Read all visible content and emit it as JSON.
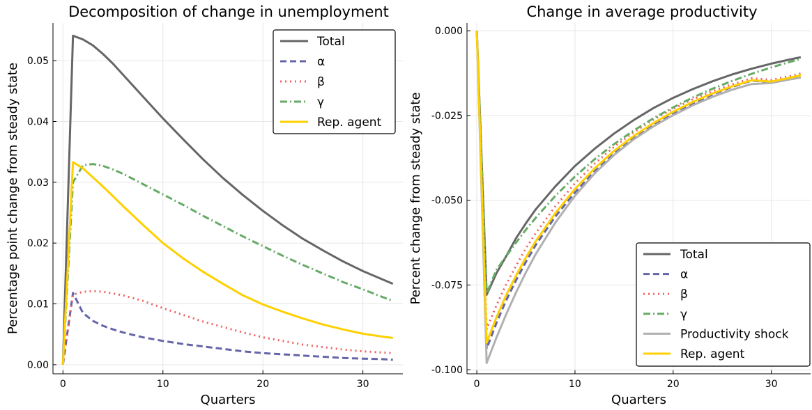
{
  "chart_data": [
    {
      "type": "line",
      "title": "Decomposition of change in unemployment",
      "xlabel": "Quarters",
      "ylabel": "Percentage point change from steady state",
      "xlim": [
        -1,
        34
      ],
      "ylim": [
        -0.0015,
        0.0562
      ],
      "xticks": [
        0,
        10,
        20,
        30
      ],
      "xtick_labels": [
        "0",
        "10",
        "20",
        "30"
      ],
      "yticks": [
        0,
        0.01,
        0.02,
        0.03,
        0.04,
        0.05
      ],
      "ytick_labels": [
        "0.00",
        "0.01",
        "0.02",
        "0.03",
        "0.04",
        "0.05"
      ],
      "grid": true,
      "legend_position": "top-right",
      "series": [
        {
          "name": "Total",
          "color": "#666666",
          "dash": "solid",
          "x": [
            0,
            1,
            2,
            3,
            4,
            5,
            6,
            8,
            10,
            12,
            14,
            16,
            18,
            20,
            22,
            24,
            26,
            28,
            30,
            32,
            33
          ],
          "y": [
            0,
            0.0541,
            0.0535,
            0.0525,
            0.0511,
            0.0495,
            0.0477,
            0.0441,
            0.0405,
            0.0371,
            0.0338,
            0.0307,
            0.0279,
            0.0253,
            0.0229,
            0.0207,
            0.0188,
            0.017,
            0.0154,
            0.014,
            0.0133
          ]
        },
        {
          "name": "α",
          "color": "#6464aa",
          "dash": "dash",
          "x": [
            0,
            1,
            2,
            3,
            4,
            5,
            6,
            8,
            10,
            12,
            14,
            16,
            18,
            20,
            22,
            24,
            26,
            28,
            30,
            32,
            33
          ],
          "y": [
            0,
            0.0118,
            0.0085,
            0.0072,
            0.0064,
            0.0058,
            0.0053,
            0.0045,
            0.0039,
            0.0034,
            0.003,
            0.0026,
            0.0022,
            0.0019,
            0.0017,
            0.0015,
            0.0013,
            0.0011,
            0.001,
            0.0009,
            0.0008
          ]
        },
        {
          "name": "β",
          "color": "#f06060",
          "dash": "dot",
          "x": [
            0,
            1,
            2,
            3,
            4,
            5,
            6,
            8,
            10,
            12,
            14,
            16,
            18,
            20,
            22,
            24,
            26,
            28,
            30,
            32,
            33
          ],
          "y": [
            0,
            0.0115,
            0.012,
            0.0121,
            0.012,
            0.0117,
            0.0114,
            0.0105,
            0.0093,
            0.0082,
            0.0071,
            0.0062,
            0.0053,
            0.0045,
            0.0039,
            0.0033,
            0.0029,
            0.0025,
            0.0022,
            0.002,
            0.0019
          ]
        },
        {
          "name": "γ",
          "color": "#66aa66",
          "dash": "dashdot",
          "x": [
            0,
            1,
            2,
            3,
            4,
            5,
            6,
            8,
            10,
            12,
            14,
            16,
            18,
            20,
            22,
            24,
            26,
            28,
            30,
            32,
            33
          ],
          "y": [
            0,
            0.03,
            0.0328,
            0.033,
            0.0327,
            0.0321,
            0.0314,
            0.0297,
            0.028,
            0.0263,
            0.0245,
            0.0228,
            0.0211,
            0.0195,
            0.0179,
            0.0164,
            0.015,
            0.0136,
            0.0124,
            0.0111,
            0.0105
          ]
        },
        {
          "name": "Rep. agent",
          "color": "#ffd000",
          "dash": "solid",
          "x": [
            0,
            1,
            2,
            3,
            4,
            5,
            6,
            8,
            10,
            12,
            14,
            16,
            18,
            20,
            22,
            24,
            26,
            28,
            30,
            32,
            33
          ],
          "y": [
            0,
            0.0333,
            0.0323,
            0.0308,
            0.0293,
            0.0277,
            0.0261,
            0.023,
            0.02,
            0.0175,
            0.0153,
            0.0133,
            0.0114,
            0.0099,
            0.0087,
            0.0076,
            0.0066,
            0.0058,
            0.0051,
            0.0046,
            0.0044
          ]
        }
      ]
    },
    {
      "type": "line",
      "title": "Change in average productivity",
      "xlabel": "Quarters",
      "ylabel": "Percent change from steady state",
      "xlim": [
        -1,
        34
      ],
      "ylim": [
        -0.1012,
        0.0023
      ],
      "xticks": [
        0,
        10,
        20,
        30
      ],
      "xtick_labels": [
        "0",
        "10",
        "20",
        "30"
      ],
      "yticks": [
        0,
        -0.025,
        -0.05,
        -0.075,
        -0.1
      ],
      "ytick_labels": [
        "0.000",
        "-0.025",
        "-0.050",
        "-0.075",
        "-0.100"
      ],
      "grid": true,
      "legend_position": "bottom-right",
      "series": [
        {
          "name": "Total",
          "color": "#666666",
          "dash": "solid",
          "x": [
            0,
            1,
            2,
            3,
            4,
            5,
            6,
            8,
            10,
            12,
            14,
            16,
            18,
            20,
            22,
            24,
            26,
            28,
            30,
            32,
            33
          ],
          "y": [
            0,
            -0.0779,
            -0.0715,
            -0.0665,
            -0.0612,
            -0.0568,
            -0.0527,
            -0.0459,
            -0.0399,
            -0.0348,
            -0.0303,
            -0.0263,
            -0.0228,
            -0.0198,
            -0.0172,
            -0.0149,
            -0.0129,
            -0.0112,
            -0.0097,
            -0.0084,
            -0.0078
          ]
        },
        {
          "name": "α",
          "color": "#6464aa",
          "dash": "dash",
          "x": [
            0,
            1,
            2,
            3,
            4,
            5,
            6,
            8,
            10,
            12,
            14,
            16,
            18,
            20,
            22,
            24,
            26,
            28,
            30,
            32,
            33
          ],
          "y": [
            0,
            -0.0938,
            -0.0862,
            -0.0795,
            -0.0736,
            -0.0682,
            -0.0632,
            -0.0548,
            -0.0477,
            -0.0415,
            -0.0362,
            -0.0317,
            -0.0278,
            -0.0244,
            -0.0214,
            -0.0188,
            -0.0166,
            -0.0147,
            -0.0152,
            -0.014,
            -0.0135
          ]
        },
        {
          "name": "β",
          "color": "#f06060",
          "dash": "dot",
          "x": [
            0,
            1,
            2,
            3,
            4,
            5,
            6,
            8,
            10,
            12,
            14,
            16,
            18,
            20,
            22,
            24,
            26,
            28,
            30,
            32,
            33
          ],
          "y": [
            0,
            -0.088,
            -0.081,
            -0.0748,
            -0.0693,
            -0.0642,
            -0.0597,
            -0.0518,
            -0.045,
            -0.0392,
            -0.0342,
            -0.0299,
            -0.0262,
            -0.023,
            -0.0202,
            -0.0178,
            -0.0158,
            -0.014,
            -0.0145,
            -0.0133,
            -0.0126
          ]
        },
        {
          "name": "γ",
          "color": "#66aa66",
          "dash": "dashdot",
          "x": [
            0,
            1,
            2,
            3,
            4,
            5,
            6,
            8,
            10,
            12,
            14,
            16,
            18,
            20,
            22,
            24,
            26,
            28,
            30,
            32,
            33
          ],
          "y": [
            0,
            -0.0775,
            -0.0705,
            -0.0665,
            -0.0625,
            -0.0587,
            -0.0552,
            -0.0487,
            -0.043,
            -0.0379,
            -0.0334,
            -0.0294,
            -0.0258,
            -0.0226,
            -0.0197,
            -0.0171,
            -0.0148,
            -0.0127,
            -0.0108,
            -0.0091,
            -0.0083
          ]
        },
        {
          "name": "Productivity shock",
          "color": "#b0b0b0",
          "dash": "solid",
          "x": [
            0,
            1,
            2,
            3,
            4,
            5,
            6,
            8,
            10,
            12,
            14,
            16,
            18,
            20,
            22,
            24,
            26,
            28,
            30,
            32,
            33
          ],
          "y": [
            0,
            -0.098,
            -0.0905,
            -0.0836,
            -0.0772,
            -0.0713,
            -0.0659,
            -0.0566,
            -0.0487,
            -0.0421,
            -0.0366,
            -0.032,
            -0.0282,
            -0.0249,
            -0.022,
            -0.0195,
            -0.0174,
            -0.0157,
            -0.0154,
            -0.0143,
            -0.0138
          ]
        },
        {
          "name": "Rep. agent",
          "color": "#ffd000",
          "dash": "solid",
          "x": [
            0,
            1,
            2,
            3,
            4,
            5,
            6,
            8,
            10,
            12,
            14,
            16,
            18,
            20,
            22,
            24,
            26,
            28,
            30,
            32,
            33
          ],
          "y": [
            0,
            -0.092,
            -0.0845,
            -0.078,
            -0.0722,
            -0.0669,
            -0.0621,
            -0.0538,
            -0.0467,
            -0.0406,
            -0.0354,
            -0.031,
            -0.0272,
            -0.0239,
            -0.021,
            -0.0185,
            -0.0164,
            -0.0146,
            -0.015,
            -0.0138,
            -0.0131
          ]
        }
      ]
    }
  ]
}
